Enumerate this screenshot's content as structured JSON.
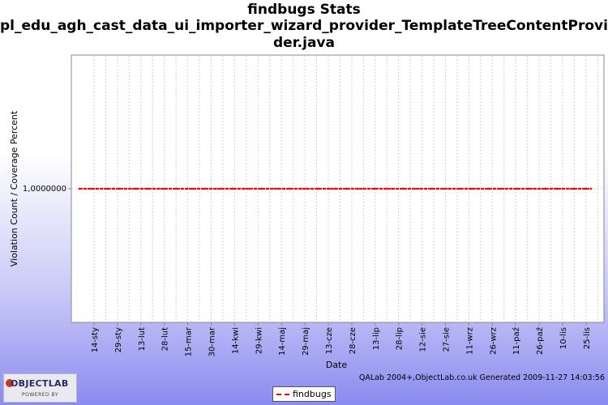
{
  "chart_data": {
    "type": "line",
    "title_line1": "findbugs  Stats",
    "title_line2": "pl_edu_agh_cast_data_ui_importer_wizard_provider_TemplateTreeContentProvi",
    "title_line3": "der.java",
    "xlabel": "Date",
    "ylabel": "Violation Count / Coverage Percent",
    "y_tick_label": "1,0000000",
    "y_tick_value": 1,
    "categories": [
      "14-sty",
      "29-sty",
      "13-lut",
      "28-lut",
      "15-mar",
      "30-mar",
      "14-kwi",
      "29-kwi",
      "14-maj",
      "29-maj",
      "13-cze",
      "28-cze",
      "13-lip",
      "28-lip",
      "12-sie",
      "27-sie",
      "11-wrz",
      "26-wrz",
      "11-paź",
      "26-paź",
      "10-lis",
      "25-lis"
    ],
    "series": [
      {
        "name": "findbugs",
        "color": "#ff0000",
        "constant_value": 1
      }
    ],
    "grid": true,
    "legend_position": "bottom"
  },
  "footer": {
    "credit": "QALab 2004+,ObjectLab.co.uk Generated 2009-11-27 14:03:56",
    "logo_text": "OBJECTLAB",
    "logo_sub": "POWERED BY"
  }
}
